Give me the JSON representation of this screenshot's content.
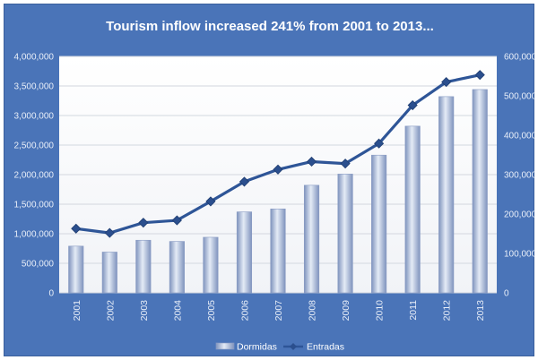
{
  "chart_data": {
    "type": "bar",
    "title": "Tourism  inflow increased 241% from 2001 to 2013...",
    "categories": [
      "2001",
      "2002",
      "2003",
      "2004",
      "2005",
      "2006",
      "2007",
      "2008",
      "2009",
      "2010",
      "2011",
      "2012",
      "2013"
    ],
    "series": [
      {
        "name": "Dormidas",
        "type": "bar",
        "axis": "left",
        "color": "#a8b8d8",
        "values": [
          790000,
          690000,
          890000,
          870000,
          940000,
          1370000,
          1420000,
          1820000,
          2010000,
          2330000,
          2820000,
          3320000,
          3440000
        ]
      },
      {
        "name": "Entradas",
        "type": "line",
        "axis": "right",
        "color": "#2e5597",
        "values": [
          163000,
          152000,
          178000,
          184000,
          232000,
          282000,
          313000,
          333000,
          328000,
          379000,
          476000,
          535000,
          553000
        ]
      }
    ],
    "y_left": {
      "lim": [
        0,
        4000000
      ],
      "ticks": [
        0,
        500000,
        1000000,
        1500000,
        2000000,
        2500000,
        3000000,
        3500000,
        4000000
      ],
      "tick_labels": [
        "0",
        "500,000",
        "1,000,000",
        "1,500,000",
        "2,000,000",
        "2,500,000",
        "3,000,000",
        "3,500,000",
        "4,000,000"
      ]
    },
    "y_right": {
      "lim": [
        0,
        600000
      ],
      "ticks": [
        0,
        100000,
        200000,
        300000,
        400000,
        500000,
        600000
      ],
      "tick_labels": [
        "0",
        "100,000",
        "200,000",
        "300,000",
        "400,000",
        "500,000",
        "600,000"
      ]
    },
    "grid": true,
    "legend": "bottom"
  }
}
